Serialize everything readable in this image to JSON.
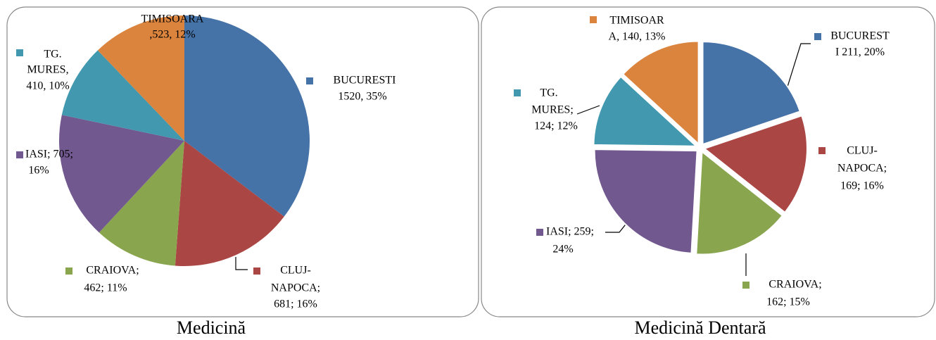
{
  "chart_data": [
    {
      "type": "pie",
      "title": "Medicină",
      "values": [
        1520,
        681,
        462,
        705,
        410,
        523
      ],
      "value_labels": [
        [
          "BUCURESTI",
          "1520, 35%"
        ],
        [
          "CLUJ-",
          "NAPOCA;",
          "681; 16%"
        ],
        [
          "CRAIOVA;",
          "462; 11%"
        ],
        [
          "IASI; 705;",
          "16%"
        ],
        [
          "TG.",
          "MURES,",
          "410, 10%"
        ],
        [
          "TIMISOARA",
          ",523, 12%"
        ]
      ],
      "colors": [
        "#4572a7",
        "#aa4643",
        "#89a54e",
        "#71588f",
        "#4198af",
        "#db843d"
      ],
      "exploded": false
    },
    {
      "type": "pie",
      "title": "Medicină Dentară",
      "values": [
        211,
        169,
        162,
        259,
        124,
        140
      ],
      "value_labels": [
        [
          "BUCUREST",
          "I 211, 20%"
        ],
        [
          "CLUJ-",
          "NAPOCA;",
          "169; 16%"
        ],
        [
          "CRAIOVA;",
          "162; 15%"
        ],
        [
          "IASI; 259;",
          "24%"
        ],
        [
          "TG.",
          "MURES;",
          "124; 12%"
        ],
        [
          "TIMISOAR",
          "A, 140, 13%"
        ]
      ],
      "colors": [
        "#4572a7",
        "#aa4643",
        "#89a54e",
        "#71588f",
        "#4198af",
        "#db843d"
      ],
      "exploded": true
    }
  ]
}
